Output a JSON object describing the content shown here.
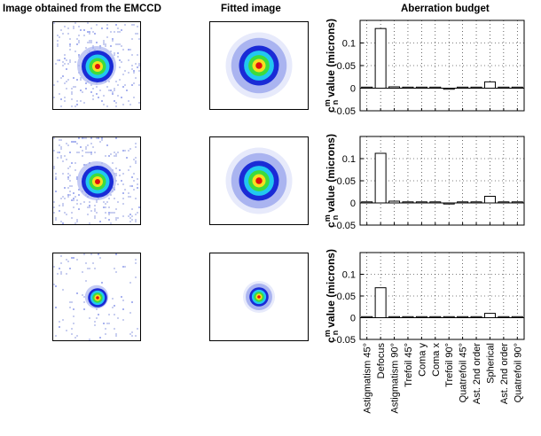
{
  "columns": {
    "emccd_title": "Image obtained from the EMCCD",
    "fitted_title": "Fitted image",
    "budget_title": "Aberration budget"
  },
  "colors": {
    "noise": "#c9cff0",
    "halo": "#aab4f0",
    "ring_blue": "#1a2bd6",
    "ring_cyan": "#22c8f0",
    "ring_green": "#3ddc3d",
    "ring_yellow": "#f6e01f",
    "core_red": "#e01010"
  },
  "rows": [
    {
      "id": "row-1",
      "emccd_spot": "medium",
      "fitted_spot": "large"
    },
    {
      "id": "row-2",
      "emccd_spot": "medium",
      "fitted_spot": "large"
    },
    {
      "id": "row-3",
      "emccd_spot": "small",
      "fitted_spot": "small"
    }
  ],
  "chart_data": [
    {
      "type": "bar",
      "title": "Aberration budget",
      "ylabel_main": "c",
      "ylabel_sup": "m",
      "ylabel_sub": "n",
      "ylabel_rest": "value (microns)",
      "ylim": [
        -0.05,
        0.15
      ],
      "yticks": [
        "0.1",
        "0.05",
        "0",
        "-0.05"
      ],
      "ytick_values": [
        0.1,
        0.05,
        0,
        -0.05
      ],
      "grid": true,
      "categories": [
        "Astigmatism 45°",
        "Defocus",
        "Astigmatism 90°",
        "Trefoil 45°",
        "Coma y",
        "Coma x",
        "Trefoil 90°",
        "Quatrefoil 45°",
        "Ast. 2nd order",
        "Spherical",
        "Ast. 2nd order",
        "Quatrefoil 90°"
      ],
      "values": [
        0.0,
        0.132,
        0.003,
        0.0,
        0.0,
        0.0,
        -0.002,
        0.0,
        0.0,
        0.014,
        0.0,
        0.0
      ]
    },
    {
      "type": "bar",
      "title": "Aberration budget",
      "ylabel_main": "c",
      "ylabel_sup": "m",
      "ylabel_sub": "n",
      "ylabel_rest": "value (microns)",
      "ylim": [
        -0.05,
        0.15
      ],
      "yticks": [
        "0.1",
        "0.05",
        "0",
        "-0.05"
      ],
      "ytick_values": [
        0.1,
        0.05,
        0,
        -0.05
      ],
      "grid": true,
      "categories": [
        "Astigmatism 45°",
        "Defocus",
        "Astigmatism 90°",
        "Trefoil 45°",
        "Coma y",
        "Coma x",
        "Trefoil 90°",
        "Quatrefoil 45°",
        "Ast. 2nd order",
        "Spherical",
        "Ast. 2nd order",
        "Quatrefoil 90°"
      ],
      "values": [
        0.001,
        0.112,
        0.004,
        0.0,
        0.001,
        0.001,
        -0.001,
        0.0,
        0.0,
        0.015,
        0.0,
        0.0
      ]
    },
    {
      "type": "bar",
      "title": "Aberration budget",
      "ylabel_main": "c",
      "ylabel_sup": "m",
      "ylabel_sub": "n",
      "ylabel_rest": "value (microns)",
      "ylim": [
        -0.05,
        0.15
      ],
      "yticks": [
        "0.1",
        "0.05",
        "0",
        "-0.05"
      ],
      "ytick_values": [
        0.1,
        0.05,
        0,
        -0.05
      ],
      "grid": true,
      "categories": [
        "Astigmatism 45°",
        "Defocus",
        "Astigmatism 90°",
        "Trefoil 45°",
        "Coma y",
        "Coma x",
        "Trefoil 90°",
        "Quatrefoil 45°",
        "Ast. 2nd order",
        "Spherical",
        "Ast. 2nd order",
        "Quatrefoil 90°"
      ],
      "values": [
        0.001,
        0.069,
        0.0,
        0.0,
        0.001,
        0.0,
        0.0,
        0.0,
        0.0,
        0.01,
        0.0,
        0.001
      ]
    }
  ]
}
